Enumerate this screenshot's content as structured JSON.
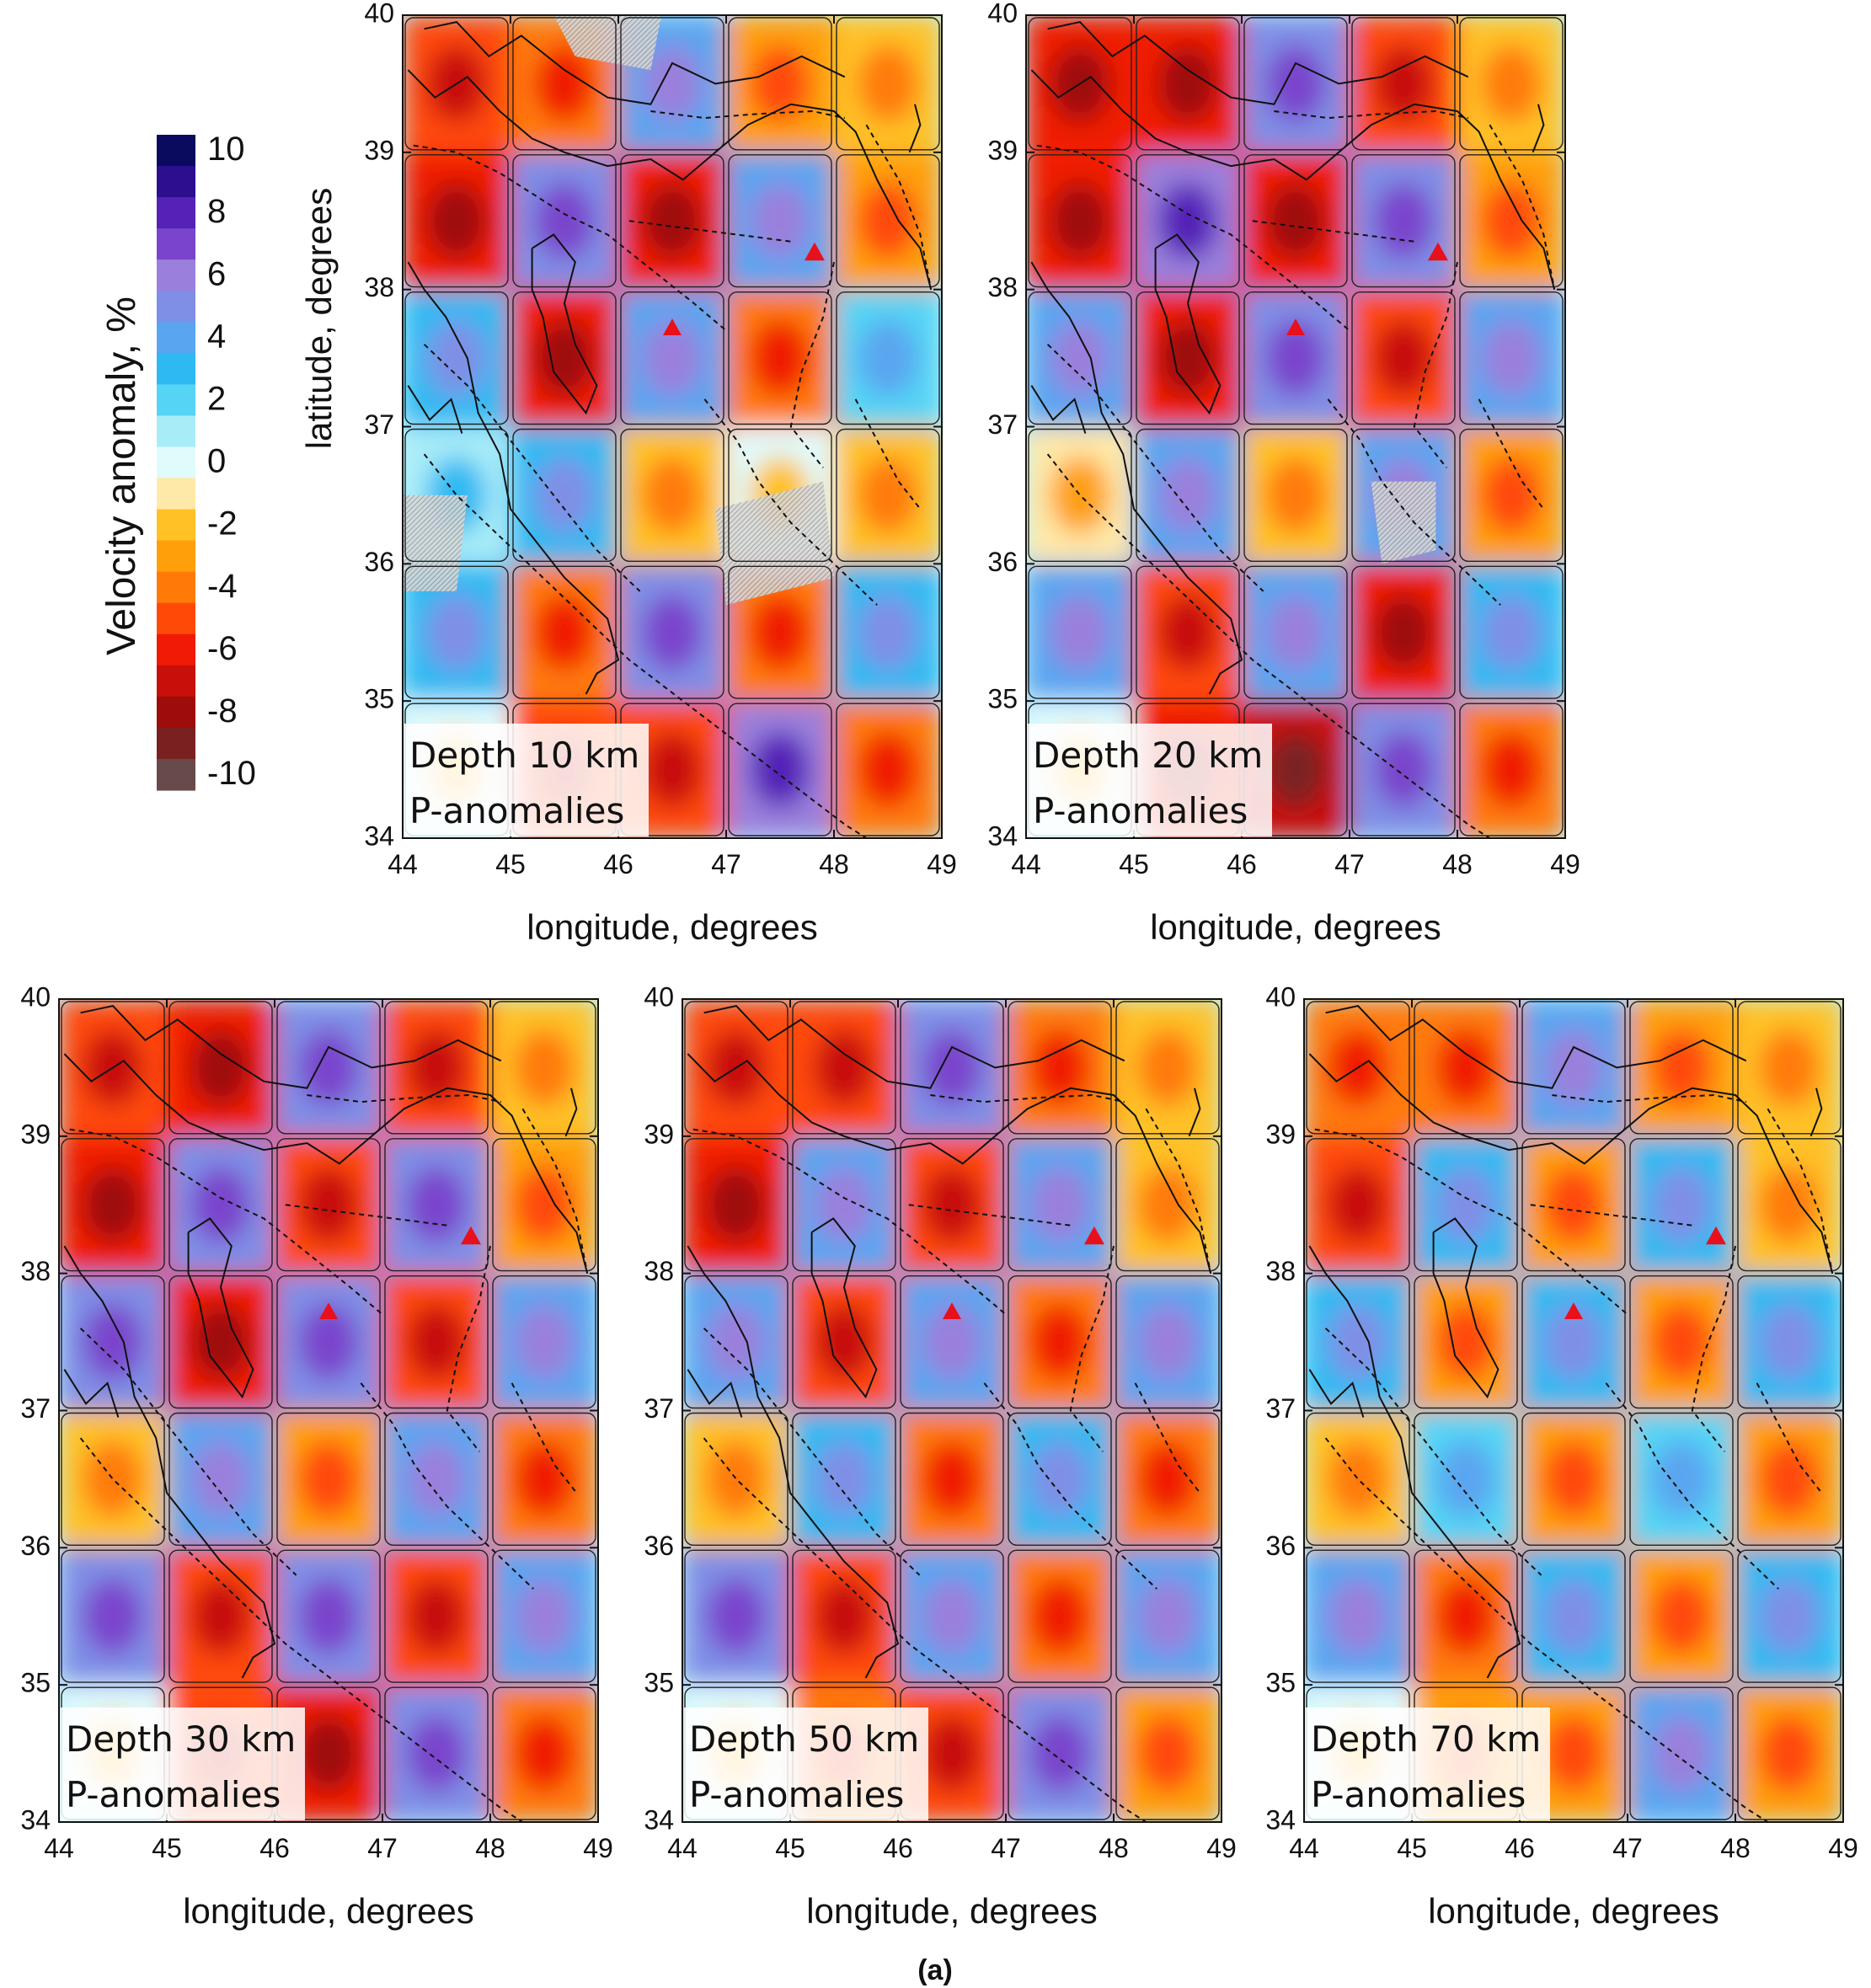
{
  "figure_caption": "(a)",
  "colorbar": {
    "title": "Velocity anomaly, %",
    "ticks": [
      "10",
      "8",
      "6",
      "4",
      "2",
      "0",
      "-2",
      "-4",
      "-6",
      "-8",
      "-10"
    ],
    "colors": [
      "#0a0a5e",
      "#2c0f8f",
      "#5522b8",
      "#7a45cc",
      "#9a80dc",
      "#7f8fe6",
      "#5aa5f0",
      "#2eb9f2",
      "#55d4f5",
      "#a8ecf8",
      "#e0fbfc",
      "#ffe9a8",
      "#ffc125",
      "#ff9f0a",
      "#ff7a08",
      "#ff4a07",
      "#f01a06",
      "#c80f0a",
      "#9e0c0c",
      "#7a2020",
      "#684a4a"
    ]
  },
  "axes": {
    "xlabel": "longitude, degrees",
    "ylabel": "latitude, degrees",
    "x_ticks": [
      "44",
      "45",
      "46",
      "47",
      "48",
      "49"
    ],
    "y_ticks": [
      "40",
      "39",
      "38",
      "37",
      "36",
      "35",
      "34"
    ],
    "xlim": [
      44,
      49
    ],
    "ylim": [
      34,
      40
    ]
  },
  "chart_data": [
    {
      "type": "heatmap",
      "title": "Depth 10 km",
      "subtitle": "P-anomalies",
      "depth_km": 10,
      "xlabel": "longitude, degrees",
      "ylabel": "latitude, degrees",
      "grid_lon": [
        44.5,
        45.5,
        46.5,
        47.5,
        48.5
      ],
      "grid_lat": [
        39.5,
        38.5,
        37.5,
        36.5,
        35.5,
        34.5
      ],
      "values": [
        [
          -5,
          -4,
          4,
          -3,
          -2
        ],
        [
          -6,
          5,
          -6,
          4,
          -3
        ],
        [
          3,
          -6,
          4,
          -4,
          2
        ],
        [
          1,
          3,
          -2,
          0,
          -2
        ],
        [
          3,
          -4,
          5,
          -4,
          3
        ],
        [
          0,
          -5,
          -5,
          6,
          -4
        ]
      ]
    },
    {
      "type": "heatmap",
      "title": "Depth 20 km",
      "subtitle": "P-anomalies",
      "depth_km": 20,
      "xlabel": "longitude, degrees",
      "ylabel": "latitude, degrees",
      "grid_lon": [
        44.5,
        45.5,
        46.5,
        47.5,
        48.5
      ],
      "grid_lat": [
        39.5,
        38.5,
        37.5,
        36.5,
        35.5,
        34.5
      ],
      "values": [
        [
          -6,
          -6,
          5,
          -5,
          -2
        ],
        [
          -6,
          6,
          -6,
          5,
          -3
        ],
        [
          4,
          -6,
          5,
          -5,
          4
        ],
        [
          -1,
          4,
          -2,
          4,
          -3
        ],
        [
          4,
          -5,
          4,
          -6,
          3
        ],
        [
          0,
          -6,
          -7,
          5,
          -4
        ]
      ]
    },
    {
      "type": "heatmap",
      "title": "Depth 30 km",
      "subtitle": "P-anomalies",
      "depth_km": 30,
      "xlabel": "longitude, degrees",
      "ylabel": "latitude, degrees",
      "grid_lon": [
        44.5,
        45.5,
        46.5,
        47.5,
        48.5
      ],
      "grid_lat": [
        39.5,
        38.5,
        37.5,
        36.5,
        35.5,
        34.5
      ],
      "values": [
        [
          -5,
          -6,
          5,
          -5,
          -2
        ],
        [
          -6,
          5,
          -5,
          5,
          -3
        ],
        [
          5,
          -6,
          5,
          -5,
          4
        ],
        [
          -2,
          4,
          -3,
          4,
          -4
        ],
        [
          5,
          -5,
          5,
          -5,
          4
        ],
        [
          0,
          -5,
          -6,
          5,
          -4
        ]
      ]
    },
    {
      "type": "heatmap",
      "title": "Depth 50 km",
      "subtitle": "P-anomalies",
      "depth_km": 50,
      "xlabel": "longitude, degrees",
      "ylabel": "latitude, degrees",
      "grid_lon": [
        44.5,
        45.5,
        46.5,
        47.5,
        48.5
      ],
      "grid_lat": [
        39.5,
        38.5,
        37.5,
        36.5,
        35.5,
        34.5
      ],
      "values": [
        [
          -5,
          -5,
          5,
          -4,
          -2
        ],
        [
          -6,
          4,
          -5,
          4,
          -2
        ],
        [
          4,
          -5,
          4,
          -4,
          4
        ],
        [
          -2,
          3,
          -4,
          3,
          -4
        ],
        [
          5,
          -5,
          4,
          -4,
          4
        ],
        [
          0,
          -4,
          -5,
          5,
          -3
        ]
      ]
    },
    {
      "type": "heatmap",
      "title": "Depth 70 km",
      "subtitle": "P-anomalies",
      "depth_km": 70,
      "xlabel": "longitude, degrees",
      "ylabel": "latitude, degrees",
      "grid_lon": [
        44.5,
        45.5,
        46.5,
        47.5,
        48.5
      ],
      "grid_lat": [
        39.5,
        38.5,
        37.5,
        36.5,
        35.5,
        34.5
      ],
      "values": [
        [
          -4,
          -4,
          4,
          -3,
          -2
        ],
        [
          -5,
          3,
          -3,
          3,
          -2
        ],
        [
          3,
          -3,
          3,
          -3,
          3
        ],
        [
          -2,
          2,
          -3,
          2,
          -3
        ],
        [
          4,
          -4,
          3,
          -3,
          3
        ],
        [
          0,
          -3,
          -3,
          4,
          -3
        ]
      ]
    }
  ]
}
